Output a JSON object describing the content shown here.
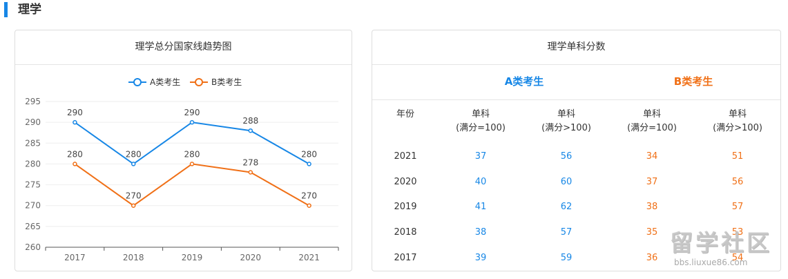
{
  "section": {
    "title": "理学"
  },
  "colors": {
    "a": "#1787e6",
    "b": "#f07017",
    "accent": "#1787e6"
  },
  "left_panel": {
    "title": "理学总分国家线趋势图"
  },
  "right_panel": {
    "title": "理学单科分数",
    "group_a": "A类考生",
    "group_b": "B类考生",
    "headers": {
      "year": "年份",
      "a1_line1": "单科",
      "a1_line2": "(满分=100)",
      "a2_line1": "单科",
      "a2_line2": "(满分>100)",
      "b1_line1": "单科",
      "b1_line2": "(满分=100)",
      "b2_line1": "单科",
      "b2_line2": "(满分>100)"
    },
    "rows": [
      {
        "year": "2021",
        "a1": "37",
        "a2": "56",
        "b1": "34",
        "b2": "51"
      },
      {
        "year": "2020",
        "a1": "40",
        "a2": "60",
        "b1": "37",
        "b2": "56"
      },
      {
        "year": "2019",
        "a1": "41",
        "a2": "62",
        "b1": "38",
        "b2": "57"
      },
      {
        "year": "2018",
        "a1": "38",
        "a2": "57",
        "b1": "35",
        "b2": "53"
      },
      {
        "year": "2017",
        "a1": "39",
        "a2": "59",
        "b1": "36",
        "b2": "54"
      }
    ]
  },
  "watermark": {
    "main": "留学社区",
    "sub": "bbs.liuxue86.com"
  },
  "chart_data": {
    "type": "line",
    "title": "理学总分国家线趋势图",
    "categories": [
      "2017",
      "2018",
      "2019",
      "2020",
      "2021"
    ],
    "series": [
      {
        "name": "A类考生",
        "color": "#1787e6",
        "values": [
          290,
          280,
          290,
          288,
          280
        ]
      },
      {
        "name": "B类考生",
        "color": "#f07017",
        "values": [
          280,
          270,
          280,
          278,
          270
        ]
      }
    ],
    "ylim": [
      260,
      295
    ],
    "yticks": [
      260,
      265,
      270,
      275,
      280,
      285,
      290,
      295
    ],
    "legend": "top-center",
    "grid": true
  }
}
